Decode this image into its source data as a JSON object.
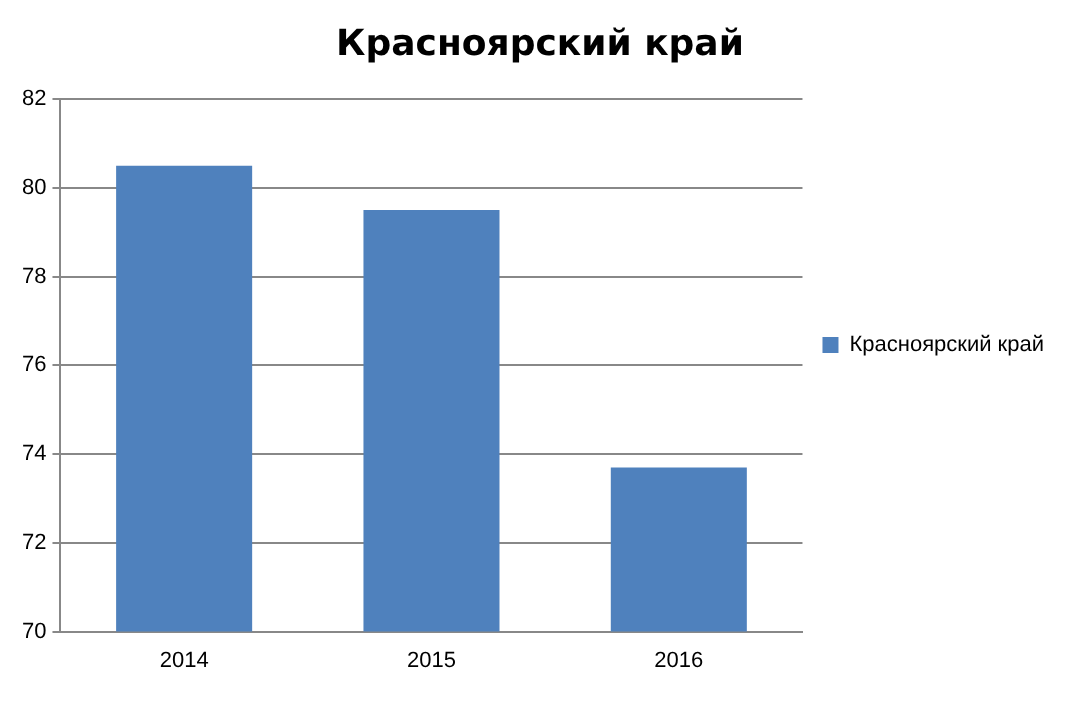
{
  "chart_data": {
    "type": "bar",
    "title": "Красноярский край",
    "categories": [
      "2014",
      "2015",
      "2016"
    ],
    "series": [
      {
        "name": "Красноярский край",
        "color": "#4f81bd",
        "values": [
          80.5,
          79.5,
          73.7
        ]
      }
    ],
    "ylim": [
      70,
      82
    ],
    "yticks": [
      70,
      72,
      74,
      76,
      78,
      80,
      82
    ],
    "grid": "y",
    "legend": "right"
  }
}
